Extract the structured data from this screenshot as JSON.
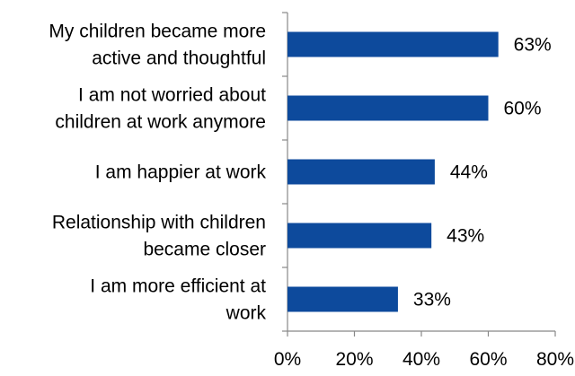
{
  "chart_data": {
    "type": "bar",
    "orientation": "horizontal",
    "categories": [
      [
        "My children became more",
        "active and thoughtful"
      ],
      [
        "I am not worried about",
        "children at work anymore"
      ],
      [
        "I am happier at work"
      ],
      [
        "Relationship with children",
        "became closer"
      ],
      [
        "I am more efficient at",
        "work"
      ]
    ],
    "values": [
      63,
      60,
      44,
      43,
      33
    ],
    "data_labels": [
      "63%",
      "60%",
      "44%",
      "43%",
      "33%"
    ],
    "xlim": [
      0,
      80
    ],
    "xticks": [
      0,
      20,
      40,
      60,
      80
    ],
    "xtick_labels": [
      "0%",
      "20%",
      "40%",
      "60%",
      "80%"
    ],
    "grid": false,
    "legend": "none",
    "colors": {
      "bar": "#0d4a9c",
      "axis": "#888888"
    }
  }
}
